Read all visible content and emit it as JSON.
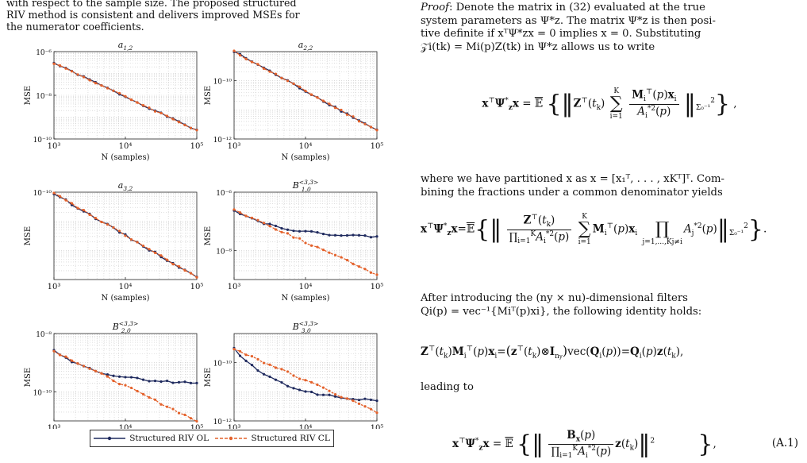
{
  "intro": {
    "line1": "with respect to the sample size. The proposed structured",
    "line2": "RIV method is consistent and delivers improved MSEs for",
    "line3": "the numerator coefficients."
  },
  "figure": {
    "ylabel": "MSE",
    "xlabel": "N (samples)",
    "xticks": [
      "10³",
      "10⁴",
      "10⁵"
    ],
    "series_colors": {
      "ol": "#1f2a5e",
      "cl": "#e4622c"
    },
    "legend": {
      "ol": "Structured RIV OL",
      "cl": "Structured RIV CL"
    }
  },
  "chart_data": [
    {
      "type": "line",
      "title": "a1,2",
      "xlabel": "N (samples)",
      "ylabel": "MSE",
      "xscale": "log",
      "yscale": "log",
      "xlim": [
        1000,
        100000
      ],
      "ylim": [
        1e-10,
        1e-06
      ],
      "yticks": [
        "10⁻¹⁰",
        "10⁻⁸",
        "10⁻⁶"
      ],
      "series": [
        {
          "name": "Structured RIV OL",
          "start": 3e-07,
          "end": 2.5e-10
        },
        {
          "name": "Structured RIV CL",
          "start": 3e-07,
          "end": 2.5e-10
        }
      ]
    },
    {
      "type": "line",
      "title": "a2,2",
      "xlabel": "N (samples)",
      "ylabel": "MSE",
      "xscale": "log",
      "yscale": "log",
      "xlim": [
        1000,
        100000
      ],
      "ylim": [
        1e-12,
        1e-09
      ],
      "yticks": [
        "10⁻¹²",
        "10⁻¹⁰"
      ],
      "series": [
        {
          "name": "Structured RIV OL",
          "start": 1e-09,
          "end": 2e-12
        },
        {
          "name": "Structured RIV CL",
          "start": 1e-09,
          "end": 2e-12
        }
      ]
    },
    {
      "type": "line",
      "title": "a3,2",
      "xlabel": "N (samples)",
      "ylabel": "MSE",
      "xscale": "log",
      "yscale": "log",
      "xlim": [
        1000,
        100000
      ],
      "ylim": [
        1e-13,
        1e-10
      ],
      "yticks": [
        "10⁻¹⁰"
      ],
      "series": [
        {
          "name": "Structured RIV OL",
          "start": 9e-11,
          "end": 1.2e-13
        },
        {
          "name": "Structured RIV CL",
          "start": 9e-11,
          "end": 1.2e-13
        }
      ]
    },
    {
      "type": "line",
      "title": "B<3,3>1,0",
      "xlabel": "N (samples)",
      "ylabel": "MSE",
      "xscale": "log",
      "yscale": "log",
      "xlim": [
        1000,
        100000
      ],
      "ylim": [
        1e-09,
        1e-06
      ],
      "yticks": [
        "10⁻⁸",
        "10⁻⁶"
      ],
      "series": [
        {
          "name": "Structured RIV OL",
          "start": 2.5e-07,
          "end": 3e-08
        },
        {
          "name": "Structured RIV CL",
          "start": 2.5e-07,
          "end": 1.5e-09
        }
      ]
    },
    {
      "type": "line",
      "title": "B<3,3>2,0",
      "xlabel": "N (samples)",
      "ylabel": "MSE",
      "xscale": "log",
      "yscale": "log",
      "xlim": [
        1000,
        100000
      ],
      "ylim": [
        1e-11,
        1e-08
      ],
      "yticks": [
        "10⁻¹⁰",
        "10⁻⁸"
      ],
      "series": [
        {
          "name": "Structured RIV OL",
          "start": 2.5e-09,
          "end": 2e-10
        },
        {
          "name": "Structured RIV CL",
          "start": 2.5e-09,
          "end": 1e-11
        }
      ]
    },
    {
      "type": "line",
      "title": "B<3,3>3,0",
      "xlabel": "N (samples)",
      "ylabel": "MSE",
      "xscale": "log",
      "yscale": "log",
      "xlim": [
        1000,
        100000
      ],
      "ylim": [
        1e-12,
        1e-09
      ],
      "yticks": [
        "10⁻¹²",
        "10⁻¹⁰"
      ],
      "series": [
        {
          "name": "Structured RIV OL",
          "start": 3e-10,
          "end": 5e-12
        },
        {
          "name": "Structured RIV CL",
          "start": 3e-10,
          "end": 2e-12
        }
      ]
    }
  ],
  "right": {
    "proof_label": "Proof",
    "p1_rest": ": Denote the matrix in (32) evaluated at the true",
    "p1_l2": "system parameters as Ψ*z. The matrix Ψ*z is then posi-",
    "p1_l3": "tive definite if xᵀΨ*zx = 0 implies x = 0. Substituting",
    "p1_l4": "𝒵i(tk) = Mi(p)Z(tk) in Ψ*z allows us to write",
    "p2_l1": "where we have partitioned x as x = [x₁ᵀ, . . . , xKᵀ]ᵀ. Com-",
    "p2_l2": "bining the fractions under a common denominator yields",
    "p3_l1": "After introducing the (ny × nu)-dimensional filters",
    "p3_l2": "Qi(p) = vec⁻¹{Miᵀ(p)xi}, the following identity holds:",
    "p4": "leading to",
    "eq_num": "(A.1)"
  }
}
